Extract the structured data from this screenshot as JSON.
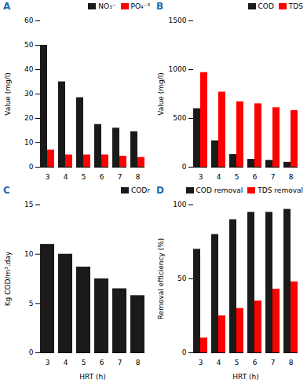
{
  "chart_data": [
    {
      "type": "bar",
      "title": "A",
      "categories": [
        "3",
        "4",
        "5",
        "6",
        "7",
        "8"
      ],
      "series": [
        {
          "name": "NO₃⁻",
          "color": "#1a1a1a",
          "values": [
            50,
            35,
            28.5,
            17.5,
            16,
            14.5
          ]
        },
        {
          "name": "PO₄⁻³",
          "color": "#ff0000",
          "values": [
            7,
            5,
            5,
            5,
            4.5,
            4
          ]
        }
      ],
      "y_label": "Value (mg/l)",
      "ylim": [
        0,
        60
      ],
      "yticks": [
        0,
        10,
        20,
        30,
        40,
        50,
        60
      ],
      "legend": "upper right"
    },
    {
      "type": "bar",
      "title": "B",
      "categories": [
        "3",
        "4",
        "5",
        "6",
        "7",
        "8"
      ],
      "series": [
        {
          "name": "COD",
          "color": "#1a1a1a",
          "values": [
            600,
            270,
            130,
            80,
            70,
            50
          ]
        },
        {
          "name": "TDS",
          "color": "#ff0000",
          "values": [
            970,
            770,
            670,
            650,
            610,
            580
          ]
        }
      ],
      "y_label": "Value (mg/l)",
      "ylim": [
        0,
        1500
      ],
      "yticks": [
        0,
        500,
        1000,
        1500
      ],
      "legend": "upper right"
    },
    {
      "type": "bar",
      "title": "C",
      "categories": [
        "3",
        "4",
        "5",
        "6",
        "7",
        "8"
      ],
      "series": [
        {
          "name": "CODr",
          "color": "#1a1a1a",
          "values": [
            11,
            10,
            8.7,
            7.5,
            6.5,
            5.8
          ]
        }
      ],
      "x_label": "HRT (h)",
      "y_label": "Kg COD/m³.day",
      "ylim": [
        0,
        15
      ],
      "yticks": [
        0,
        5,
        10,
        15
      ],
      "legend": "upper right"
    },
    {
      "type": "bar",
      "title": "D",
      "categories": [
        "3",
        "4",
        "5",
        "6",
        "7",
        "8"
      ],
      "series": [
        {
          "name": "COD removal",
          "color": "#1a1a1a",
          "values": [
            70,
            80,
            90,
            95,
            95,
            97
          ]
        },
        {
          "name": "TDS removal",
          "color": "#ff0000",
          "values": [
            10,
            25,
            30,
            35,
            43,
            48
          ]
        }
      ],
      "x_label": "HRT (h)",
      "y_label": "Removal efficiency (%)",
      "ylim": [
        0,
        100
      ],
      "yticks": [
        0,
        50,
        100
      ],
      "legend": "upper right"
    }
  ]
}
